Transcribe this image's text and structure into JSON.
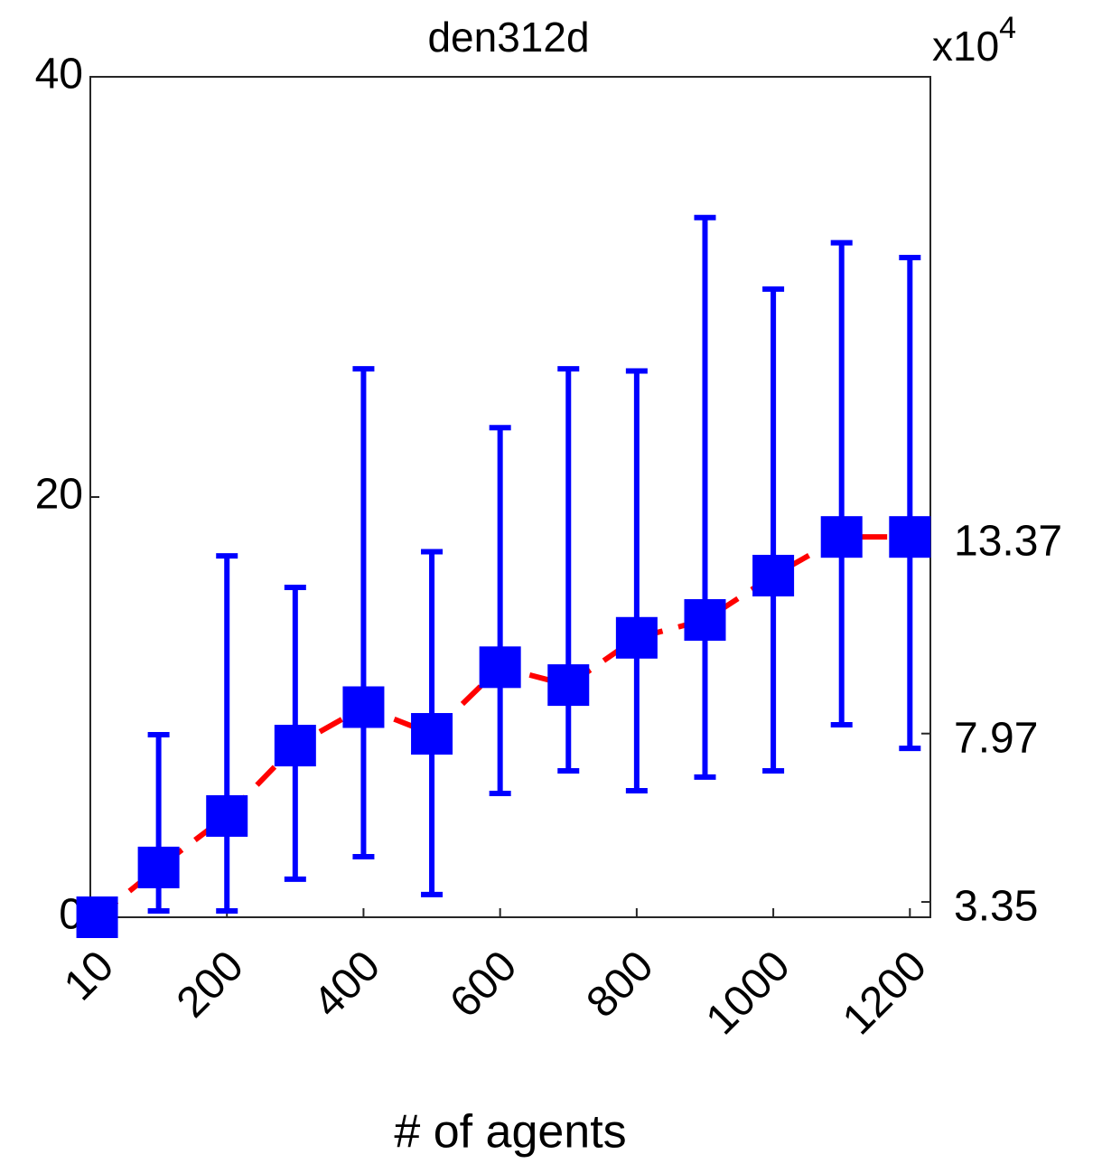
{
  "chart_data": {
    "type": "errorbar",
    "title": "den312d",
    "xlabel": "# of agents",
    "x": [
      10,
      100,
      200,
      300,
      400,
      500,
      600,
      700,
      800,
      900,
      1000,
      1100,
      1200
    ],
    "series": [
      {
        "color": "#0000ff",
        "line_color": "#ff0000",
        "values": [
          0,
          2.37,
          4.82,
          8.17,
          10.0,
          8.73,
          11.9,
          11.05,
          13.3,
          14.15,
          16.26,
          18.1,
          18.1
        ],
        "lower": [
          null,
          0.3,
          0.3,
          1.81,
          2.88,
          1.08,
          5.89,
          6.97,
          6.02,
          6.67,
          6.97,
          9.16,
          8.04
        ],
        "upper": [
          null,
          8.69,
          17.2,
          15.7,
          26.1,
          17.4,
          23.3,
          26.1,
          26.0,
          33.3,
          29.9,
          32.1,
          31.4
        ]
      }
    ],
    "xlim": [
      0,
      1230
    ],
    "xticks": [
      10,
      200,
      400,
      600,
      800,
      1000,
      1200
    ],
    "ylim": [
      0,
      40
    ],
    "yticks": [
      0,
      20,
      40
    ],
    "y2lim": [
      2.93,
      25.99
    ],
    "y2ticks": [
      3.35,
      7.97,
      13.37
    ],
    "y2_multiplier": {
      "base": "x10",
      "exponent": "4"
    }
  }
}
